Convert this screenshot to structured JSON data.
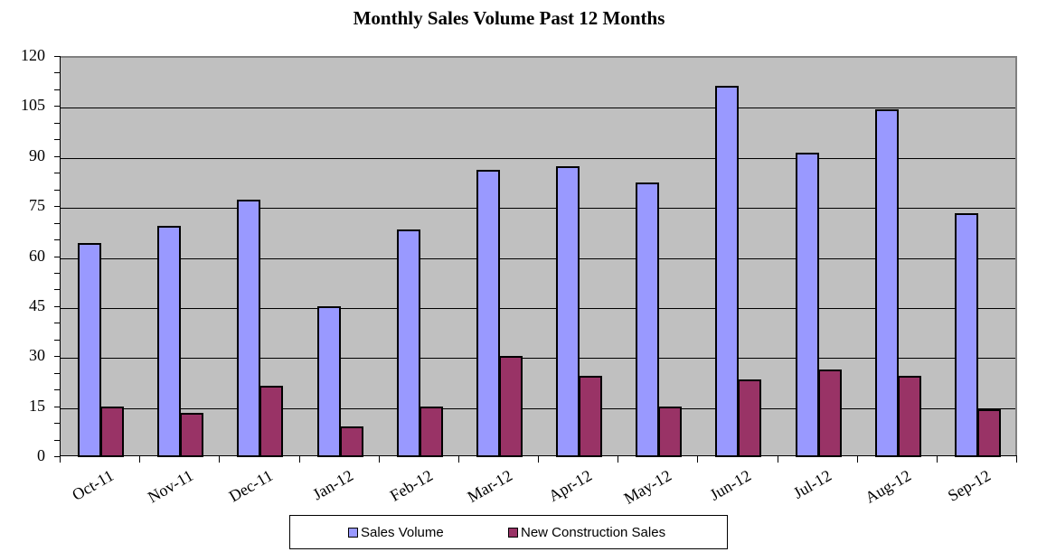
{
  "chart_data": {
    "type": "bar",
    "title": "Monthly Sales Volume Past 12 Months",
    "xlabel": "",
    "ylabel": "",
    "ylim": [
      0,
      120
    ],
    "yticks": [
      0,
      15,
      30,
      45,
      60,
      75,
      90,
      105,
      120
    ],
    "grid": true,
    "legend_position": "bottom",
    "categories": [
      "Oct-11",
      "Nov-11",
      "Dec-11",
      "Jan-12",
      "Feb-12",
      "Mar-12",
      "Apr-12",
      "May-12",
      "Jun-12",
      "Jul-12",
      "Aug-12",
      "Sep-12"
    ],
    "series": [
      {
        "name": "Sales Volume",
        "color": "#9999ff",
        "values": [
          64,
          69,
          77,
          45,
          68,
          86,
          87,
          82,
          111,
          91,
          104,
          73
        ]
      },
      {
        "name": "New Construction Sales",
        "color": "#993366",
        "values": [
          15,
          13,
          21,
          9,
          15,
          30,
          24,
          15,
          23,
          26,
          24,
          14
        ]
      }
    ]
  },
  "colors": {
    "plot_background": "#c0c0c0",
    "plot_border": "#808080"
  }
}
